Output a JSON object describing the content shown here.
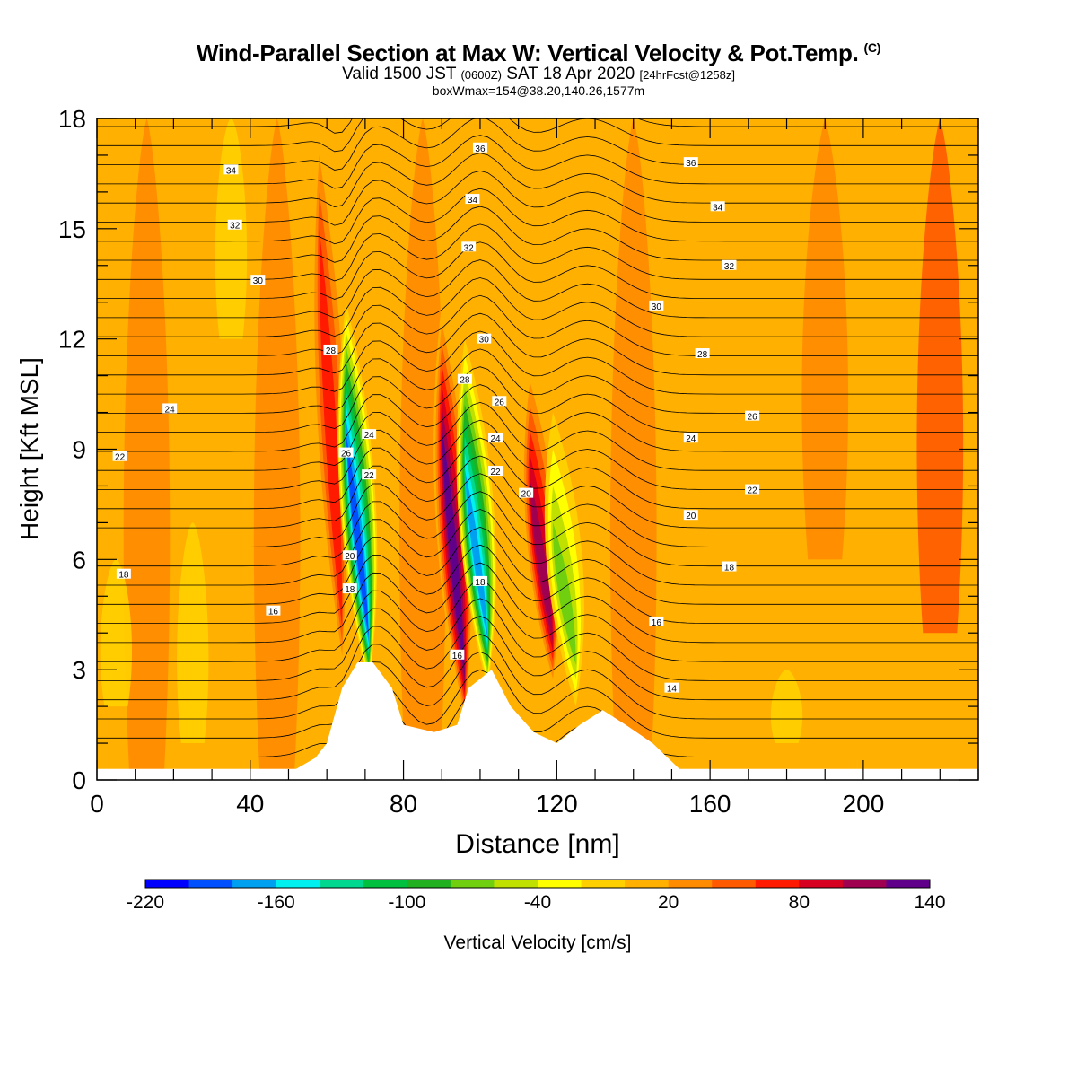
{
  "titles": {
    "line1": "Wind-Parallel Section at Max W: Vertical Velocity & Pot.Temp.",
    "line1_mark": "(C)",
    "line2_a": "Valid 1500 JST",
    "line2_b": "(0600Z)",
    "line2_c": "SAT 18 Apr 2020",
    "line2_d": "[24hrFcst@1258z]",
    "line3": "boxWmax=154@38.20,140.26,1577m"
  },
  "chart_data": {
    "type": "heatmap",
    "xlabel": "Distance [nm]",
    "ylabel": "Height [Kft MSL]",
    "xlim": [
      0,
      230
    ],
    "ylim": [
      0,
      18
    ],
    "x_ticks": [
      0,
      40,
      80,
      120,
      160,
      200
    ],
    "y_ticks": [
      0,
      3,
      6,
      9,
      12,
      15,
      18
    ],
    "colorbar": {
      "label": "Vertical Velocity [cm/s]",
      "tick_labels": [
        "-220",
        "-160",
        "-100",
        "-40",
        "20",
        "80",
        "140"
      ],
      "range": [
        -220,
        140
      ],
      "step": 20,
      "colors": [
        "#0000ff",
        "#0050ff",
        "#00a0f0",
        "#00f0f0",
        "#00d890",
        "#00c040",
        "#20b020",
        "#70d010",
        "#c0e000",
        "#ffff00",
        "#ffd000",
        "#ffb000",
        "#ff8c00",
        "#ff5a00",
        "#ff1a00",
        "#d80020",
        "#a00050",
        "#60008a"
      ]
    },
    "vertical_velocity_features": [
      {
        "x": 62,
        "z_bottom": 3,
        "z_top": 18,
        "w": 80,
        "kind": "updraft"
      },
      {
        "x": 69,
        "z_bottom": 2.5,
        "z_top": 13,
        "w": -200,
        "kind": "downdraft"
      },
      {
        "x": 94,
        "z_bottom": 1.5,
        "z_top": 13,
        "w": 130,
        "kind": "updraft"
      },
      {
        "x": 100,
        "z_bottom": 2.5,
        "z_top": 12,
        "w": -170,
        "kind": "downdraft"
      },
      {
        "x": 117,
        "z_bottom": 2.5,
        "z_top": 11.5,
        "w": 120,
        "kind": "updraft"
      },
      {
        "x": 123,
        "z_bottom": 2,
        "z_top": 10,
        "w": -80,
        "kind": "downdraft"
      }
    ],
    "terrain": [
      [
        52,
        0.3
      ],
      [
        57,
        0.6
      ],
      [
        60,
        1
      ],
      [
        64,
        2.5
      ],
      [
        68,
        3.2
      ],
      [
        72,
        3.2
      ],
      [
        77,
        2.5
      ],
      [
        80,
        1.5
      ],
      [
        88,
        1.3
      ],
      [
        94,
        1.5
      ],
      [
        97,
        2.5
      ],
      [
        103,
        3
      ],
      [
        108,
        2
      ],
      [
        114,
        1.3
      ],
      [
        120,
        1
      ],
      [
        126,
        1.5
      ],
      [
        132,
        1.9
      ],
      [
        138,
        1.5
      ],
      [
        145,
        1
      ],
      [
        150,
        0.5
      ],
      [
        152,
        0.3
      ]
    ],
    "theta_labels": [
      {
        "x": 35,
        "z": 16.6,
        "t": "34"
      },
      {
        "x": 36,
        "z": 15.1,
        "t": "32"
      },
      {
        "x": 42,
        "z": 13.6,
        "t": "30"
      },
      {
        "x": 19,
        "z": 10.1,
        "t": "24"
      },
      {
        "x": 6,
        "z": 8.8,
        "t": "22"
      },
      {
        "x": 7,
        "z": 5.6,
        "t": "18"
      },
      {
        "x": 46,
        "z": 4.6,
        "t": "16"
      },
      {
        "x": 61,
        "z": 11.7,
        "t": "28"
      },
      {
        "x": 65,
        "z": 8.9,
        "t": "26"
      },
      {
        "x": 71,
        "z": 9.4,
        "t": "24"
      },
      {
        "x": 71,
        "z": 8.3,
        "t": "22"
      },
      {
        "x": 66,
        "z": 6.1,
        "t": "20"
      },
      {
        "x": 66,
        "z": 5.2,
        "t": "18"
      },
      {
        "x": 100,
        "z": 17.2,
        "t": "36"
      },
      {
        "x": 98,
        "z": 15.8,
        "t": "34"
      },
      {
        "x": 97,
        "z": 14.5,
        "t": "32"
      },
      {
        "x": 101,
        "z": 12,
        "t": "30"
      },
      {
        "x": 96,
        "z": 10.9,
        "t": "28"
      },
      {
        "x": 105,
        "z": 10.3,
        "t": "26"
      },
      {
        "x": 104,
        "z": 9.3,
        "t": "24"
      },
      {
        "x": 104,
        "z": 8.4,
        "t": "22"
      },
      {
        "x": 112,
        "z": 7.8,
        "t": "20"
      },
      {
        "x": 100,
        "z": 5.4,
        "t": "18"
      },
      {
        "x": 94,
        "z": 3.4,
        "t": "16"
      },
      {
        "x": 155,
        "z": 16.8,
        "t": "36"
      },
      {
        "x": 162,
        "z": 15.6,
        "t": "34"
      },
      {
        "x": 165,
        "z": 14,
        "t": "32"
      },
      {
        "x": 146,
        "z": 12.9,
        "t": "30"
      },
      {
        "x": 158,
        "z": 11.6,
        "t": "28"
      },
      {
        "x": 171,
        "z": 9.9,
        "t": "26"
      },
      {
        "x": 155,
        "z": 9.3,
        "t": "24"
      },
      {
        "x": 171,
        "z": 7.9,
        "t": "22"
      },
      {
        "x": 155,
        "z": 7.2,
        "t": "20"
      },
      {
        "x": 165,
        "z": 5.8,
        "t": "18"
      },
      {
        "x": 146,
        "z": 4.3,
        "t": "16"
      },
      {
        "x": 150,
        "z": 2.5,
        "t": "14"
      }
    ]
  }
}
